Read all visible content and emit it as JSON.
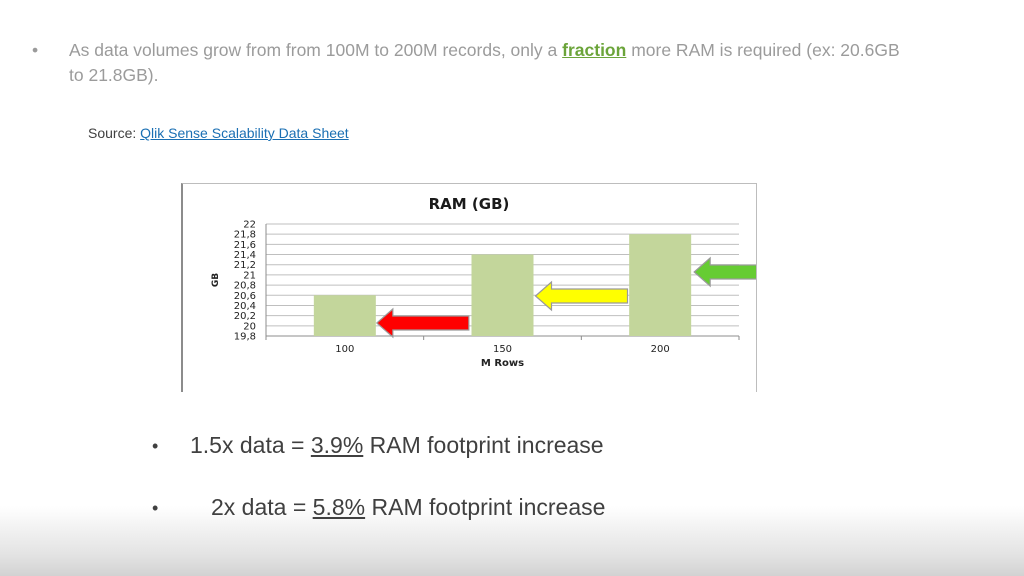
{
  "bullet_top": {
    "marker": "•",
    "text_before": "As data volumes grow from from 100M to 200M records, only a",
    "highlight": "fraction",
    "text_after": "more RAM is required  (ex: 20.6GB to 21.8GB)."
  },
  "source": {
    "label": "Source:",
    "link_text": "Qlik Sense Scalability Data Sheet"
  },
  "chart_data": {
    "type": "bar",
    "title": "RAM (GB)",
    "xlabel": "M Rows",
    "ylabel": "GB",
    "categories": [
      "100",
      "150",
      "200"
    ],
    "values": [
      20.6,
      21.4,
      21.8
    ],
    "ylim": [
      19.8,
      22
    ],
    "yticks": [
      "19,8",
      "20",
      "20,2",
      "20,4",
      "20,6",
      "20,8",
      "21",
      "21,2",
      "21,4",
      "21,6",
      "21,8",
      "22"
    ],
    "ytick_values": [
      19.8,
      20,
      20.2,
      20.4,
      20.6,
      20.8,
      21,
      21.2,
      21.4,
      21.6,
      21.8,
      22
    ],
    "grid": true,
    "bar_color": "#c3d69b",
    "arrow_colors": [
      "#ff0000",
      "#ffff00",
      "#66cc33"
    ]
  },
  "stats": [
    {
      "marker": "•",
      "prefix": "1.5x data =",
      "value": "3.9%",
      "suffix": "RAM footprint increase"
    },
    {
      "marker": "•",
      "prefix": "2x data =",
      "value": "5.8%",
      "suffix": "RAM footprint increase"
    }
  ]
}
